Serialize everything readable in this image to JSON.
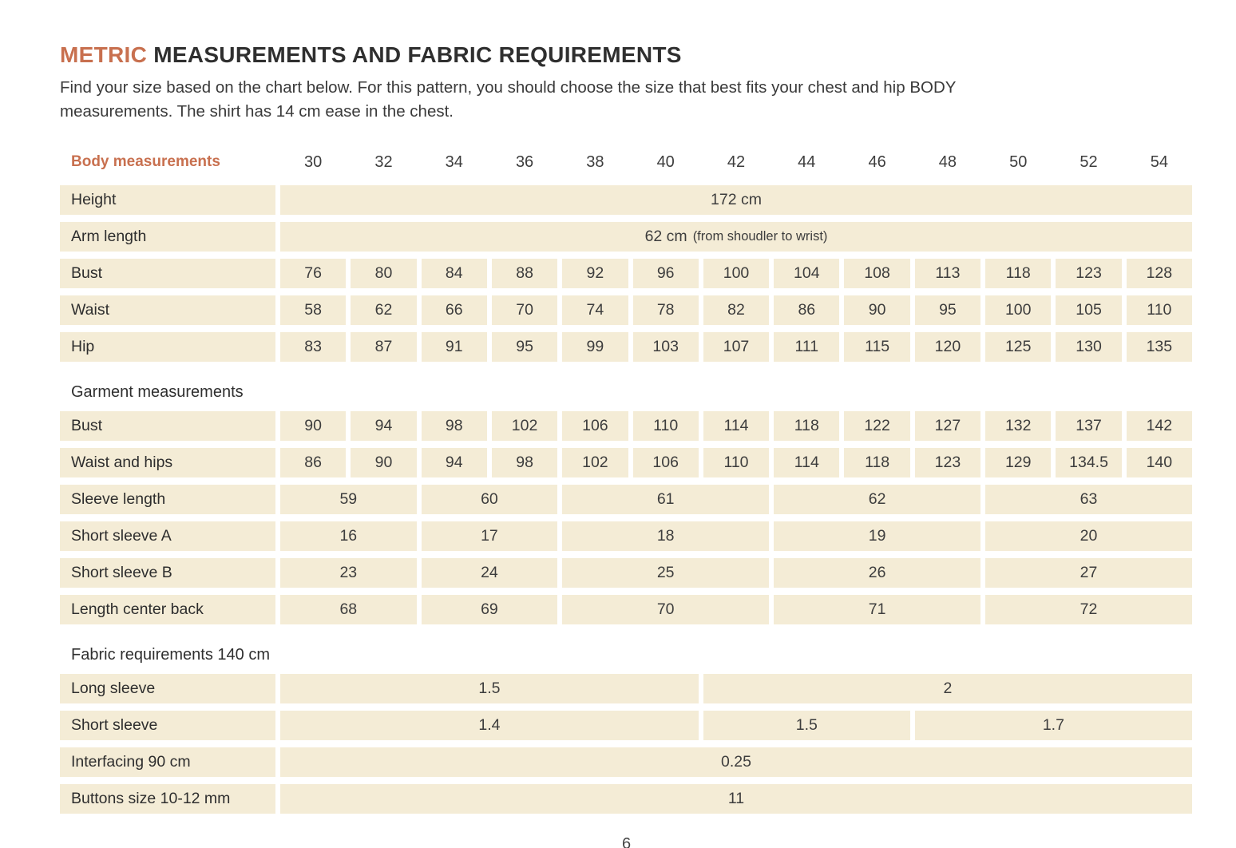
{
  "page": {
    "title_accent": "METRIC",
    "title_rest": " MEASUREMENTS AND FABRIC REQUIREMENTS",
    "intro_line1": "Find your size based on the chart below. For this pattern, you should choose the size that best fits your chest and hip BODY",
    "intro_line2": "measurements. The shirt has 14 cm ease in the chest.",
    "page_number": "6"
  },
  "colors": {
    "accent": "#c8704f",
    "cell_background": "#f4ecd6",
    "text": "#2e2e2e"
  },
  "table": {
    "header_label": "Body measurements",
    "sizes": [
      "30",
      "32",
      "34",
      "36",
      "38",
      "40",
      "42",
      "44",
      "46",
      "48",
      "50",
      "52",
      "54"
    ],
    "rows": [
      {
        "type": "data",
        "label": "Height",
        "cells": [
          {
            "span": 13,
            "value": "172 cm"
          }
        ]
      },
      {
        "type": "data",
        "label": "Arm length",
        "cells": [
          {
            "span": 13,
            "value": "62 cm",
            "note": "(from shoudler to wrist)"
          }
        ]
      },
      {
        "type": "data",
        "label": "Bust",
        "cells": [
          {
            "span": 1,
            "value": "76"
          },
          {
            "span": 1,
            "value": "80"
          },
          {
            "span": 1,
            "value": "84"
          },
          {
            "span": 1,
            "value": "88"
          },
          {
            "span": 1,
            "value": "92"
          },
          {
            "span": 1,
            "value": "96"
          },
          {
            "span": 1,
            "value": "100"
          },
          {
            "span": 1,
            "value": "104"
          },
          {
            "span": 1,
            "value": "108"
          },
          {
            "span": 1,
            "value": "113"
          },
          {
            "span": 1,
            "value": "118"
          },
          {
            "span": 1,
            "value": "123"
          },
          {
            "span": 1,
            "value": "128"
          }
        ]
      },
      {
        "type": "data",
        "label": "Waist",
        "cells": [
          {
            "span": 1,
            "value": "58"
          },
          {
            "span": 1,
            "value": "62"
          },
          {
            "span": 1,
            "value": "66"
          },
          {
            "span": 1,
            "value": "70"
          },
          {
            "span": 1,
            "value": "74"
          },
          {
            "span": 1,
            "value": "78"
          },
          {
            "span": 1,
            "value": "82"
          },
          {
            "span": 1,
            "value": "86"
          },
          {
            "span": 1,
            "value": "90"
          },
          {
            "span": 1,
            "value": "95"
          },
          {
            "span": 1,
            "value": "100"
          },
          {
            "span": 1,
            "value": "105"
          },
          {
            "span": 1,
            "value": "110"
          }
        ]
      },
      {
        "type": "data",
        "label": "Hip",
        "cells": [
          {
            "span": 1,
            "value": "83"
          },
          {
            "span": 1,
            "value": "87"
          },
          {
            "span": 1,
            "value": "91"
          },
          {
            "span": 1,
            "value": "95"
          },
          {
            "span": 1,
            "value": "99"
          },
          {
            "span": 1,
            "value": "103"
          },
          {
            "span": 1,
            "value": "107"
          },
          {
            "span": 1,
            "value": "111"
          },
          {
            "span": 1,
            "value": "115"
          },
          {
            "span": 1,
            "value": "120"
          },
          {
            "span": 1,
            "value": "125"
          },
          {
            "span": 1,
            "value": "130"
          },
          {
            "span": 1,
            "value": "135"
          }
        ]
      },
      {
        "type": "section",
        "label": "Garment measurements"
      },
      {
        "type": "data",
        "label": "Bust",
        "cells": [
          {
            "span": 1,
            "value": "90"
          },
          {
            "span": 1,
            "value": "94"
          },
          {
            "span": 1,
            "value": "98"
          },
          {
            "span": 1,
            "value": "102"
          },
          {
            "span": 1,
            "value": "106"
          },
          {
            "span": 1,
            "value": "110"
          },
          {
            "span": 1,
            "value": "114"
          },
          {
            "span": 1,
            "value": "118"
          },
          {
            "span": 1,
            "value": "122"
          },
          {
            "span": 1,
            "value": "127"
          },
          {
            "span": 1,
            "value": "132"
          },
          {
            "span": 1,
            "value": "137"
          },
          {
            "span": 1,
            "value": "142"
          }
        ]
      },
      {
        "type": "data",
        "label": "Waist and hips",
        "cells": [
          {
            "span": 1,
            "value": "86"
          },
          {
            "span": 1,
            "value": "90"
          },
          {
            "span": 1,
            "value": "94"
          },
          {
            "span": 1,
            "value": "98"
          },
          {
            "span": 1,
            "value": "102"
          },
          {
            "span": 1,
            "value": "106"
          },
          {
            "span": 1,
            "value": "110"
          },
          {
            "span": 1,
            "value": "114"
          },
          {
            "span": 1,
            "value": "118"
          },
          {
            "span": 1,
            "value": "123"
          },
          {
            "span": 1,
            "value": "129"
          },
          {
            "span": 1,
            "value": "134.5"
          },
          {
            "span": 1,
            "value": "140"
          }
        ]
      },
      {
        "type": "data",
        "label": "Sleeve length",
        "cells": [
          {
            "span": 2,
            "value": "59"
          },
          {
            "span": 2,
            "value": "60"
          },
          {
            "span": 3,
            "value": "61"
          },
          {
            "span": 3,
            "value": "62"
          },
          {
            "span": 3,
            "value": "63"
          }
        ]
      },
      {
        "type": "data",
        "label": "Short sleeve A",
        "cells": [
          {
            "span": 2,
            "value": "16"
          },
          {
            "span": 2,
            "value": "17"
          },
          {
            "span": 3,
            "value": "18"
          },
          {
            "span": 3,
            "value": "19"
          },
          {
            "span": 3,
            "value": "20"
          }
        ]
      },
      {
        "type": "data",
        "label": "Short sleeve B",
        "cells": [
          {
            "span": 2,
            "value": "23"
          },
          {
            "span": 2,
            "value": "24"
          },
          {
            "span": 3,
            "value": "25"
          },
          {
            "span": 3,
            "value": "26"
          },
          {
            "span": 3,
            "value": "27"
          }
        ]
      },
      {
        "type": "data",
        "label": "Length center back",
        "cells": [
          {
            "span": 2,
            "value": "68"
          },
          {
            "span": 2,
            "value": "69"
          },
          {
            "span": 3,
            "value": "70"
          },
          {
            "span": 3,
            "value": "71"
          },
          {
            "span": 3,
            "value": "72"
          }
        ]
      },
      {
        "type": "section",
        "label": "Fabric requirements 140 cm"
      },
      {
        "type": "data",
        "label": "Long sleeve",
        "cells": [
          {
            "span": 6,
            "value": "1.5"
          },
          {
            "span": 7,
            "value": "2"
          }
        ]
      },
      {
        "type": "data",
        "label": "Short sleeve",
        "cells": [
          {
            "span": 6,
            "value": "1.4"
          },
          {
            "span": 3,
            "value": "1.5"
          },
          {
            "span": 4,
            "value": "1.7"
          }
        ]
      },
      {
        "type": "data",
        "label": "Interfacing 90 cm",
        "cells": [
          {
            "span": 13,
            "value": "0.25"
          }
        ]
      },
      {
        "type": "data",
        "label": "Buttons size 10-12 mm",
        "cells": [
          {
            "span": 13,
            "value": "11"
          }
        ]
      }
    ]
  }
}
